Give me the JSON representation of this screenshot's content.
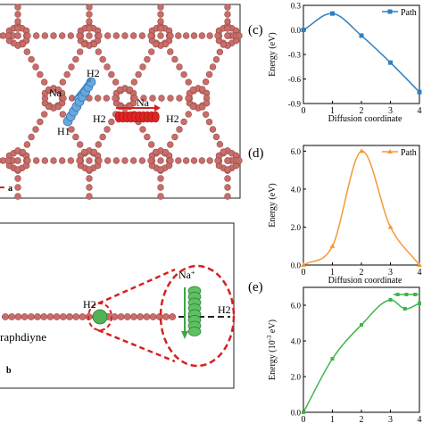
{
  "panel_a": {
    "labels": {
      "na": "Na",
      "h1": "H1",
      "h2_left": "H2",
      "na_center": "Na",
      "h2_center_left": "H2",
      "h2_center_right": "H2",
      "axis": "a"
    }
  },
  "panel_b": {
    "labels": {
      "h2_left": "H2",
      "na_plus": "Na",
      "na_plus_sup": "+",
      "h2_right": "H2",
      "material": "raphdiyne",
      "panel": "b"
    }
  },
  "panel_labels": {
    "c": "(c)",
    "d": "(d)",
    "e": "(e)"
  },
  "chart_data": [
    {
      "type": "line",
      "panel": "c",
      "xlabel": "Diffusion coordinate",
      "ylabel": "Energy (eV)",
      "xlim": [
        0,
        4
      ],
      "ylim": [
        -0.9,
        0.3
      ],
      "x_ticks": [
        "0",
        "1",
        "2",
        "3",
        "4"
      ],
      "y_ticks": [
        "0.3",
        "0.0",
        "-0.3",
        "-0.6",
        "-0.9"
      ],
      "legend": "top-right",
      "series": [
        {
          "name": "Path",
          "color": "#2f7fc1",
          "x": [
            0,
            1,
            2,
            3,
            4
          ],
          "y": [
            0.0,
            0.2,
            -0.07,
            -0.4,
            -0.76
          ]
        }
      ]
    },
    {
      "type": "line",
      "panel": "d",
      "xlabel": "Diffusion coordinate",
      "ylabel": "Energy (eV)",
      "xlim": [
        0,
        4
      ],
      "ylim": [
        0,
        6.3
      ],
      "x_ticks": [
        "0",
        "1",
        "2",
        "3",
        "4"
      ],
      "y_ticks": [
        "6.0",
        "4.0",
        "2.0",
        "0.0"
      ],
      "legend": "top-right",
      "series": [
        {
          "name": "Path",
          "color": "#f29a38",
          "x": [
            0,
            1,
            2,
            3,
            4
          ],
          "y": [
            0.0,
            1.0,
            6.0,
            2.0,
            0.0
          ]
        }
      ]
    },
    {
      "type": "line",
      "panel": "e",
      "xlabel": "Diffusion coordinate",
      "ylabel": "Energy (10",
      "ylabel_sup": "-3",
      "ylabel_end": " eV)",
      "xlim": [
        0,
        4
      ],
      "ylim": [
        0,
        7
      ],
      "x_ticks": [
        "0",
        "1",
        "2",
        "3",
        "4"
      ],
      "y_ticks": [
        "6.0",
        "4.0",
        "2.0",
        "0.0"
      ],
      "color": "#3fb54a",
      "series": [
        {
          "color": "#3fb54a",
          "x": [
            0,
            1,
            2,
            3,
            3.5,
            4
          ],
          "y": [
            0.0,
            3.0,
            4.9,
            6.3,
            5.8,
            6.1
          ]
        }
      ],
      "flat_marks_y": 6.6
    }
  ]
}
